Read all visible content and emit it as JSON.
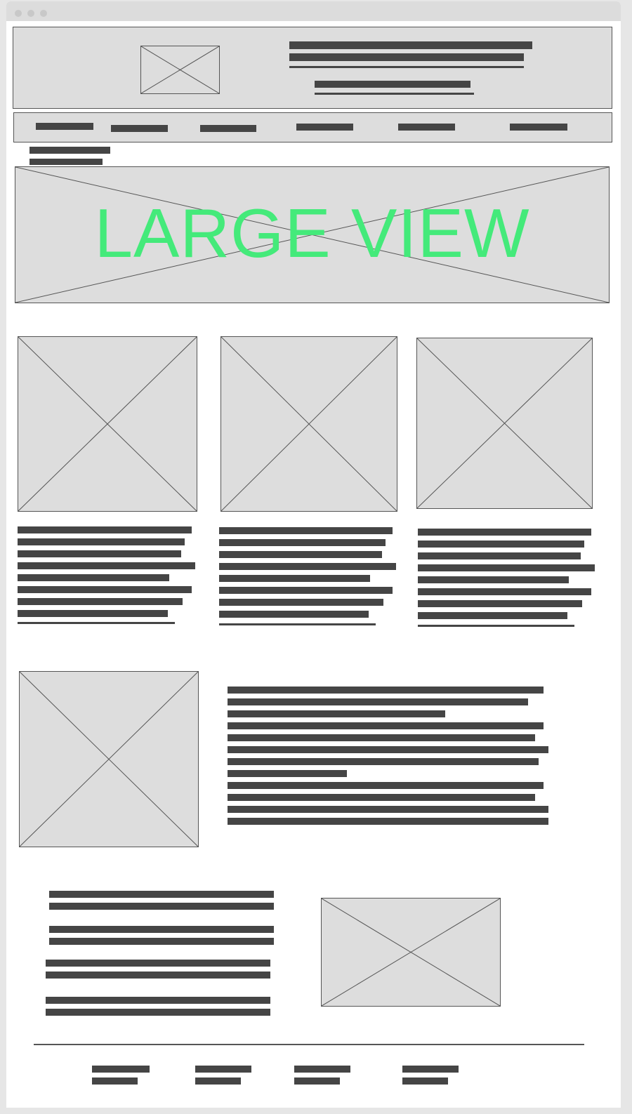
{
  "window": {
    "controls": [
      "close-dot",
      "minimize-dot",
      "maximize-dot"
    ]
  },
  "hero": {
    "label": "LARGE VIEW",
    "label_color": "#44ea7a"
  },
  "colors": {
    "placeholder_fill": "#dddddd",
    "text_bar": "#454545",
    "border": "#555555",
    "page_background": "#ffffff"
  },
  "icons": {
    "image_placeholder": "image-placeholder-icon"
  },
  "sections": {
    "header": {
      "has_logo_placeholder": true
    },
    "nav": {
      "item_count": 6
    },
    "cards": {
      "count": 3
    },
    "feature": {
      "image": true
    },
    "promo": {
      "image": true
    },
    "footer": {
      "link_count": 4
    }
  }
}
